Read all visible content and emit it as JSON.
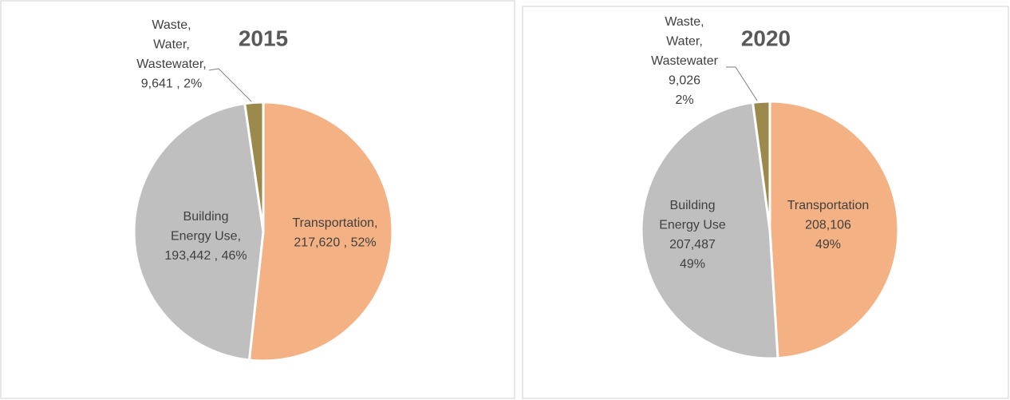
{
  "chart_data": [
    {
      "type": "pie",
      "title": "2015",
      "categories": [
        [
          "Transportation,"
        ],
        [
          "Building",
          "Energy Use,"
        ],
        [
          "Waste,",
          "Water,",
          "Wastewater,"
        ]
      ],
      "values": [
        217620,
        193442,
        9641
      ],
      "value_labels": [
        "217,620",
        "193,442",
        "9,641"
      ],
      "percents": [
        52,
        46,
        2
      ],
      "percent_labels": [
        "52%",
        "46%",
        "2%"
      ],
      "label_separator": " , ",
      "colors": [
        "#F4B183",
        "#BFBFBF",
        "#9C8A4C"
      ]
    },
    {
      "type": "pie",
      "title": "2020",
      "categories": [
        [
          "Transportation"
        ],
        [
          "Building",
          "Energy Use"
        ],
        [
          "Waste,",
          "Water,",
          "Wastewater"
        ]
      ],
      "values": [
        208106,
        207487,
        9026
      ],
      "value_labels": [
        "208,106",
        "207,487",
        "9,026"
      ],
      "percents": [
        49,
        49,
        2
      ],
      "percent_labels": [
        "49%",
        "49%",
        "2%"
      ],
      "colors": [
        "#F4B183",
        "#BFBFBF",
        "#9C8A4C"
      ]
    }
  ]
}
